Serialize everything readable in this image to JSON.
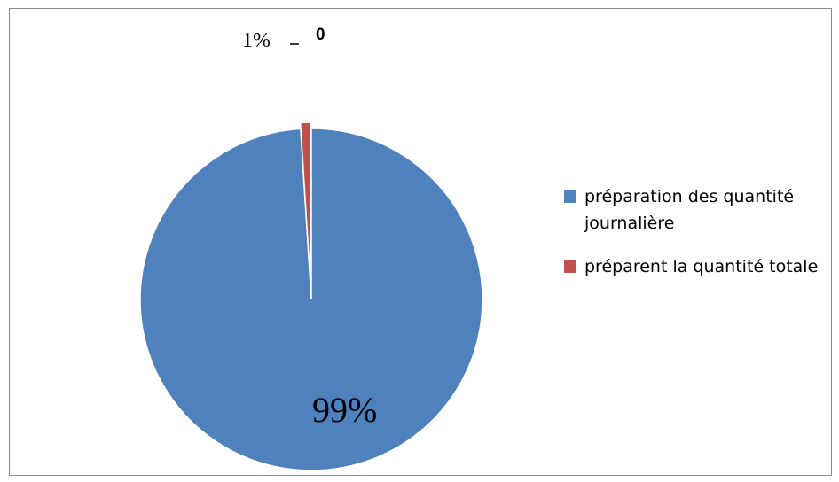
{
  "chart_data": {
    "type": "pie",
    "slices": [
      {
        "label": "préparation des quantité journalière",
        "value": 99,
        "color": "#4f81bd",
        "data_label": "99%"
      },
      {
        "label": "préparent la quantité totale",
        "value": 1,
        "color": "#c0504d",
        "data_label": "1%"
      }
    ],
    "extra_label": "0",
    "legend_position": "right"
  }
}
